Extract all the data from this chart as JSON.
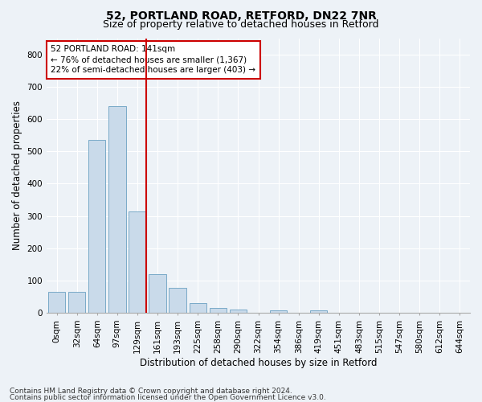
{
  "title_line1": "52, PORTLAND ROAD, RETFORD, DN22 7NR",
  "title_line2": "Size of property relative to detached houses in Retford",
  "xlabel": "Distribution of detached houses by size in Retford",
  "ylabel": "Number of detached properties",
  "categories": [
    "0sqm",
    "32sqm",
    "64sqm",
    "97sqm",
    "129sqm",
    "161sqm",
    "193sqm",
    "225sqm",
    "258sqm",
    "290sqm",
    "322sqm",
    "354sqm",
    "386sqm",
    "419sqm",
    "451sqm",
    "483sqm",
    "515sqm",
    "547sqm",
    "580sqm",
    "612sqm",
    "644sqm"
  ],
  "bar_values": [
    65,
    65,
    535,
    640,
    313,
    120,
    78,
    30,
    15,
    10,
    0,
    8,
    0,
    8,
    0,
    0,
    0,
    0,
    0,
    0,
    0
  ],
  "bar_color": "#c9daea",
  "bar_edge_color": "#7aaac8",
  "red_line_color": "#cc0000",
  "annotation_line1": "52 PORTLAND ROAD: 141sqm",
  "annotation_line2": "← 76% of detached houses are smaller (1,367)",
  "annotation_line3": "22% of semi-detached houses are larger (403) →",
  "ylim": [
    0,
    850
  ],
  "yticks": [
    0,
    100,
    200,
    300,
    400,
    500,
    600,
    700,
    800
  ],
  "footer_line1": "Contains HM Land Registry data © Crown copyright and database right 2024.",
  "footer_line2": "Contains public sector information licensed under the Open Government Licence v3.0.",
  "background_color": "#edf2f7",
  "plot_bg_color": "#edf2f7",
  "grid_color": "#ffffff",
  "annotation_box_facecolor": "#ffffff",
  "annotation_box_edgecolor": "#cc0000",
  "title_fontsize": 10,
  "subtitle_fontsize": 9,
  "axis_label_fontsize": 8.5,
  "tick_fontsize": 7.5,
  "annotation_fontsize": 7.5,
  "footer_fontsize": 6.5
}
